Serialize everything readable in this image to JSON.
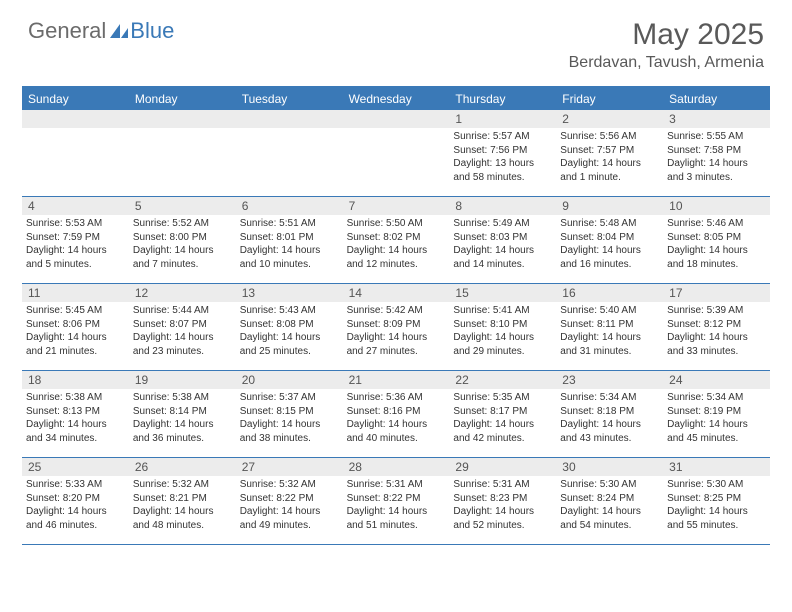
{
  "logo": {
    "text_general": "General",
    "text_blue": "Blue"
  },
  "header": {
    "month_title": "May 2025",
    "location": "Berdavan, Tavush, Armenia"
  },
  "colors": {
    "accent": "#3a79b7",
    "header_text": "#ffffff",
    "daynum_bg": "#ececec",
    "body_text": "#333333",
    "title_text": "#595959"
  },
  "day_names": [
    "Sunday",
    "Monday",
    "Tuesday",
    "Wednesday",
    "Thursday",
    "Friday",
    "Saturday"
  ],
  "weeks": [
    [
      null,
      null,
      null,
      null,
      {
        "n": "1",
        "sr": "Sunrise: 5:57 AM",
        "ss": "Sunset: 7:56 PM",
        "dl": "Daylight: 13 hours and 58 minutes."
      },
      {
        "n": "2",
        "sr": "Sunrise: 5:56 AM",
        "ss": "Sunset: 7:57 PM",
        "dl": "Daylight: 14 hours and 1 minute."
      },
      {
        "n": "3",
        "sr": "Sunrise: 5:55 AM",
        "ss": "Sunset: 7:58 PM",
        "dl": "Daylight: 14 hours and 3 minutes."
      }
    ],
    [
      {
        "n": "4",
        "sr": "Sunrise: 5:53 AM",
        "ss": "Sunset: 7:59 PM",
        "dl": "Daylight: 14 hours and 5 minutes."
      },
      {
        "n": "5",
        "sr": "Sunrise: 5:52 AM",
        "ss": "Sunset: 8:00 PM",
        "dl": "Daylight: 14 hours and 7 minutes."
      },
      {
        "n": "6",
        "sr": "Sunrise: 5:51 AM",
        "ss": "Sunset: 8:01 PM",
        "dl": "Daylight: 14 hours and 10 minutes."
      },
      {
        "n": "7",
        "sr": "Sunrise: 5:50 AM",
        "ss": "Sunset: 8:02 PM",
        "dl": "Daylight: 14 hours and 12 minutes."
      },
      {
        "n": "8",
        "sr": "Sunrise: 5:49 AM",
        "ss": "Sunset: 8:03 PM",
        "dl": "Daylight: 14 hours and 14 minutes."
      },
      {
        "n": "9",
        "sr": "Sunrise: 5:48 AM",
        "ss": "Sunset: 8:04 PM",
        "dl": "Daylight: 14 hours and 16 minutes."
      },
      {
        "n": "10",
        "sr": "Sunrise: 5:46 AM",
        "ss": "Sunset: 8:05 PM",
        "dl": "Daylight: 14 hours and 18 minutes."
      }
    ],
    [
      {
        "n": "11",
        "sr": "Sunrise: 5:45 AM",
        "ss": "Sunset: 8:06 PM",
        "dl": "Daylight: 14 hours and 21 minutes."
      },
      {
        "n": "12",
        "sr": "Sunrise: 5:44 AM",
        "ss": "Sunset: 8:07 PM",
        "dl": "Daylight: 14 hours and 23 minutes."
      },
      {
        "n": "13",
        "sr": "Sunrise: 5:43 AM",
        "ss": "Sunset: 8:08 PM",
        "dl": "Daylight: 14 hours and 25 minutes."
      },
      {
        "n": "14",
        "sr": "Sunrise: 5:42 AM",
        "ss": "Sunset: 8:09 PM",
        "dl": "Daylight: 14 hours and 27 minutes."
      },
      {
        "n": "15",
        "sr": "Sunrise: 5:41 AM",
        "ss": "Sunset: 8:10 PM",
        "dl": "Daylight: 14 hours and 29 minutes."
      },
      {
        "n": "16",
        "sr": "Sunrise: 5:40 AM",
        "ss": "Sunset: 8:11 PM",
        "dl": "Daylight: 14 hours and 31 minutes."
      },
      {
        "n": "17",
        "sr": "Sunrise: 5:39 AM",
        "ss": "Sunset: 8:12 PM",
        "dl": "Daylight: 14 hours and 33 minutes."
      }
    ],
    [
      {
        "n": "18",
        "sr": "Sunrise: 5:38 AM",
        "ss": "Sunset: 8:13 PM",
        "dl": "Daylight: 14 hours and 34 minutes."
      },
      {
        "n": "19",
        "sr": "Sunrise: 5:38 AM",
        "ss": "Sunset: 8:14 PM",
        "dl": "Daylight: 14 hours and 36 minutes."
      },
      {
        "n": "20",
        "sr": "Sunrise: 5:37 AM",
        "ss": "Sunset: 8:15 PM",
        "dl": "Daylight: 14 hours and 38 minutes."
      },
      {
        "n": "21",
        "sr": "Sunrise: 5:36 AM",
        "ss": "Sunset: 8:16 PM",
        "dl": "Daylight: 14 hours and 40 minutes."
      },
      {
        "n": "22",
        "sr": "Sunrise: 5:35 AM",
        "ss": "Sunset: 8:17 PM",
        "dl": "Daylight: 14 hours and 42 minutes."
      },
      {
        "n": "23",
        "sr": "Sunrise: 5:34 AM",
        "ss": "Sunset: 8:18 PM",
        "dl": "Daylight: 14 hours and 43 minutes."
      },
      {
        "n": "24",
        "sr": "Sunrise: 5:34 AM",
        "ss": "Sunset: 8:19 PM",
        "dl": "Daylight: 14 hours and 45 minutes."
      }
    ],
    [
      {
        "n": "25",
        "sr": "Sunrise: 5:33 AM",
        "ss": "Sunset: 8:20 PM",
        "dl": "Daylight: 14 hours and 46 minutes."
      },
      {
        "n": "26",
        "sr": "Sunrise: 5:32 AM",
        "ss": "Sunset: 8:21 PM",
        "dl": "Daylight: 14 hours and 48 minutes."
      },
      {
        "n": "27",
        "sr": "Sunrise: 5:32 AM",
        "ss": "Sunset: 8:22 PM",
        "dl": "Daylight: 14 hours and 49 minutes."
      },
      {
        "n": "28",
        "sr": "Sunrise: 5:31 AM",
        "ss": "Sunset: 8:22 PM",
        "dl": "Daylight: 14 hours and 51 minutes."
      },
      {
        "n": "29",
        "sr": "Sunrise: 5:31 AM",
        "ss": "Sunset: 8:23 PM",
        "dl": "Daylight: 14 hours and 52 minutes."
      },
      {
        "n": "30",
        "sr": "Sunrise: 5:30 AM",
        "ss": "Sunset: 8:24 PM",
        "dl": "Daylight: 14 hours and 54 minutes."
      },
      {
        "n": "31",
        "sr": "Sunrise: 5:30 AM",
        "ss": "Sunset: 8:25 PM",
        "dl": "Daylight: 14 hours and 55 minutes."
      }
    ]
  ]
}
